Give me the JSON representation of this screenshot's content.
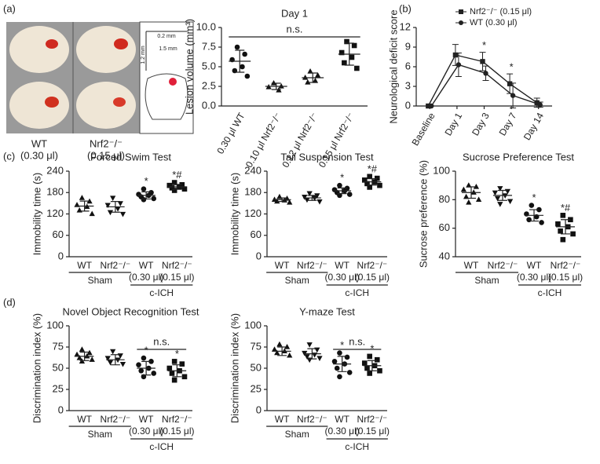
{
  "panel_labels": [
    "(a)",
    "(b)",
    "(c)",
    "(d)"
  ],
  "images": {
    "labels": [
      "WT",
      "(0.30 μl)",
      "Nrf2⁻/⁻",
      "(0.15 μl)"
    ],
    "scale_labels": [
      "0.2 mm",
      "1.5 mm",
      "1.2 mm"
    ]
  },
  "chart_data": [
    {
      "type": "dotplot",
      "title": "Day 1",
      "ylabel": "Lesion volume (mm³)",
      "categories": [
        "0.30 μl WT",
        "0.10 μl Nrf2⁻/⁻",
        "0.12 μl Nrf2⁻/⁻",
        "0.15 μl Nrf2⁻/⁻"
      ],
      "markers": [
        "circle",
        "triangle",
        "triangle",
        "square"
      ],
      "values": [
        5.7,
        2.5,
        3.6,
        6.6
      ],
      "errors": [
        1.4,
        0.4,
        0.6,
        1.4
      ],
      "points": [
        [
          7.5,
          6.6,
          5.9,
          5.0,
          4.5,
          3.8
        ],
        [
          2.9,
          2.5,
          2.4,
          2.0
        ],
        [
          4.4,
          3.9,
          3.6,
          3.2,
          3.0
        ],
        [
          8.2,
          7.7,
          6.8,
          6.2,
          5.5,
          4.8
        ]
      ],
      "bracket_label": "n.s.",
      "ylim": [
        0,
        10
      ],
      "yticks": [
        {
          "value": 0,
          "label": "0.0"
        },
        2.5,
        {
          "value": 5,
          "label": "5.0"
        },
        7.5,
        {
          "value": 10,
          "label": "10.0"
        }
      ]
    },
    {
      "type": "line",
      "ylabel": "Neurological deficit score",
      "categories": [
        "Baseline",
        "Day 1",
        "Day 3",
        "Day 7",
        "Day 14"
      ],
      "series": [
        {
          "name": "Nrf2⁻/⁻ (0.15 μl)",
          "color": "#222222",
          "marker": "square",
          "values": [
            0,
            7.8,
            6.8,
            3.4,
            0.5
          ],
          "errors": [
            0,
            1.6,
            1.4,
            1.5,
            0.7
          ]
        },
        {
          "name": "WT (0.30 μl)",
          "color": "#222222",
          "marker": "circle",
          "values": [
            0,
            6.3,
            5.0,
            1.6,
            0.2
          ],
          "errors": [
            0,
            1.8,
            1.1,
            1.9,
            0.4
          ]
        }
      ],
      "annotations": [
        null,
        null,
        "*",
        "*",
        null
      ],
      "legend": "upper right",
      "ylim": [
        0,
        12
      ],
      "yticks": [
        0,
        3,
        6,
        9,
        12
      ]
    },
    {
      "type": "dotplot",
      "title": "Forced Swim Test",
      "ylabel": "Immobility time (s)",
      "categories": [
        "WT",
        "Nrf2⁻/⁻",
        "WT",
        "Nrf2⁻/⁻"
      ],
      "sub_labels": [
        null,
        null,
        "(0.30 μl)",
        "(0.15 μl)"
      ],
      "group_labels": [
        "Sham",
        "c-ICH"
      ],
      "markers": [
        "triangle",
        "tridown",
        "circle",
        "square"
      ],
      "values": [
        142,
        140,
        172,
        196
      ],
      "errors": [
        14,
        15,
        10,
        7
      ],
      "points": [
        [
          165,
          155,
          145,
          140,
          130,
          120
        ],
        [
          165,
          150,
          145,
          135,
          125,
          120
        ],
        [
          190,
          180,
          175,
          172,
          168,
          163,
          160
        ],
        [
          208,
          202,
          200,
          196,
          193,
          190,
          186
        ]
      ],
      "annotations": [
        null,
        null,
        "*",
        "*#"
      ],
      "ylim": [
        0,
        240
      ],
      "yticks": [
        0,
        60,
        120,
        180,
        240
      ]
    },
    {
      "type": "dotplot",
      "title": "Tail Suspension Test",
      "ylabel": "Immobility time (s)",
      "categories": [
        "WT",
        "Nrf2⁻/⁻",
        "WT",
        "Nrf2⁻/⁻"
      ],
      "sub_labels": [
        null,
        null,
        "(0.30 μl)",
        "(0.15 μl)"
      ],
      "group_labels": [
        "Sham",
        "c-ICH"
      ],
      "markers": [
        "triangle",
        "tridown",
        "circle",
        "square"
      ],
      "values": [
        160,
        165,
        185,
        210
      ],
      "errors": [
        5,
        7,
        8,
        9
      ],
      "points": [
        [
          168,
          163,
          160,
          158,
          155,
          152
        ],
        [
          178,
          172,
          168,
          165,
          160,
          155
        ],
        [
          200,
          192,
          188,
          185,
          180,
          175,
          172
        ],
        [
          225,
          220,
          215,
          210,
          205,
          200,
          195
        ]
      ],
      "annotations": [
        null,
        null,
        "*",
        "*#"
      ],
      "ylim": [
        0,
        240
      ],
      "yticks": [
        0,
        60,
        120,
        180,
        240
      ]
    },
    {
      "type": "dotplot",
      "title": "Sucrose Preference Test",
      "ylabel": "Sucrose preference (%)",
      "categories": [
        "WT",
        "Nrf2⁻/⁻",
        "WT",
        "Nrf2⁻/⁻"
      ],
      "sub_labels": [
        null,
        null,
        "(0.30 μl)",
        "(0.15 μl)"
      ],
      "group_labels": [
        "Sham",
        "c-ICH"
      ],
      "markers": [
        "triangle",
        "tridown",
        "circle",
        "square"
      ],
      "values": [
        85,
        83,
        69,
        61
      ],
      "errors": [
        4,
        3.5,
        4,
        5
      ],
      "points": [
        [
          90,
          89,
          87,
          85,
          82,
          80,
          78
        ],
        [
          88,
          86,
          85,
          83,
          81,
          79,
          77
        ],
        [
          76,
          73,
          70,
          68,
          66,
          64
        ],
        [
          69,
          66,
          63,
          61,
          58,
          56,
          52
        ]
      ],
      "annotations": [
        null,
        null,
        "*",
        "*#"
      ],
      "ylim": [
        40,
        100
      ],
      "yticks": [
        40,
        60,
        80,
        100
      ]
    },
    {
      "type": "dotplot",
      "title": "Novel Object Recognition Test",
      "ylabel": "Discrimination index (%)",
      "categories": [
        "WT",
        "Nrf2⁻/⁻",
        "WT",
        "Nrf2⁻/⁻"
      ],
      "sub_labels": [
        null,
        null,
        "(0.30 μl)",
        "(0.15 μl)"
      ],
      "group_labels": [
        "Sham",
        "c-ICH"
      ],
      "markers": [
        "triangle",
        "tridown",
        "circle",
        "square"
      ],
      "values": [
        64,
        60,
        50,
        47
      ],
      "errors": [
        5,
        6,
        8,
        7
      ],
      "points": [
        [
          72,
          68,
          66,
          64,
          62,
          60,
          58
        ],
        [
          70,
          65,
          62,
          60,
          57,
          55
        ],
        [
          62,
          58,
          54,
          50,
          47,
          44,
          40
        ],
        [
          58,
          55,
          50,
          47,
          44,
          40,
          36
        ]
      ],
      "annotations": [
        null,
        null,
        "*",
        "*"
      ],
      "bracket_label": "n.s.",
      "ylim": [
        0,
        100
      ],
      "yticks": [
        0,
        25,
        50,
        75,
        100
      ]
    },
    {
      "type": "dotplot",
      "title": "Y-maze Test",
      "ylabel": "Discrimination index (%)",
      "categories": [
        "WT",
        "Nrf2⁻/⁻",
        "WT",
        "Nrf2⁻/⁻"
      ],
      "sub_labels": [
        null,
        null,
        "(0.30 μl)",
        "(0.15 μl)"
      ],
      "group_labels": [
        "Sham",
        "c-ICH"
      ],
      "markers": [
        "triangle",
        "tridown",
        "circle",
        "square"
      ],
      "values": [
        70,
        67,
        55,
        53
      ],
      "errors": [
        5,
        6,
        9,
        6
      ],
      "points": [
        [
          78,
          75,
          72,
          70,
          68,
          65
        ],
        [
          78,
          72,
          68,
          66,
          64,
          62,
          60
        ],
        [
          68,
          63,
          58,
          55,
          50,
          45,
          40
        ],
        [
          64,
          60,
          56,
          53,
          50,
          47,
          44
        ]
      ],
      "annotations": [
        null,
        null,
        "*",
        "*"
      ],
      "bracket_label": "n.s.",
      "ylim": [
        0,
        100
      ],
      "yticks": [
        0,
        25,
        50,
        75,
        100
      ]
    }
  ]
}
